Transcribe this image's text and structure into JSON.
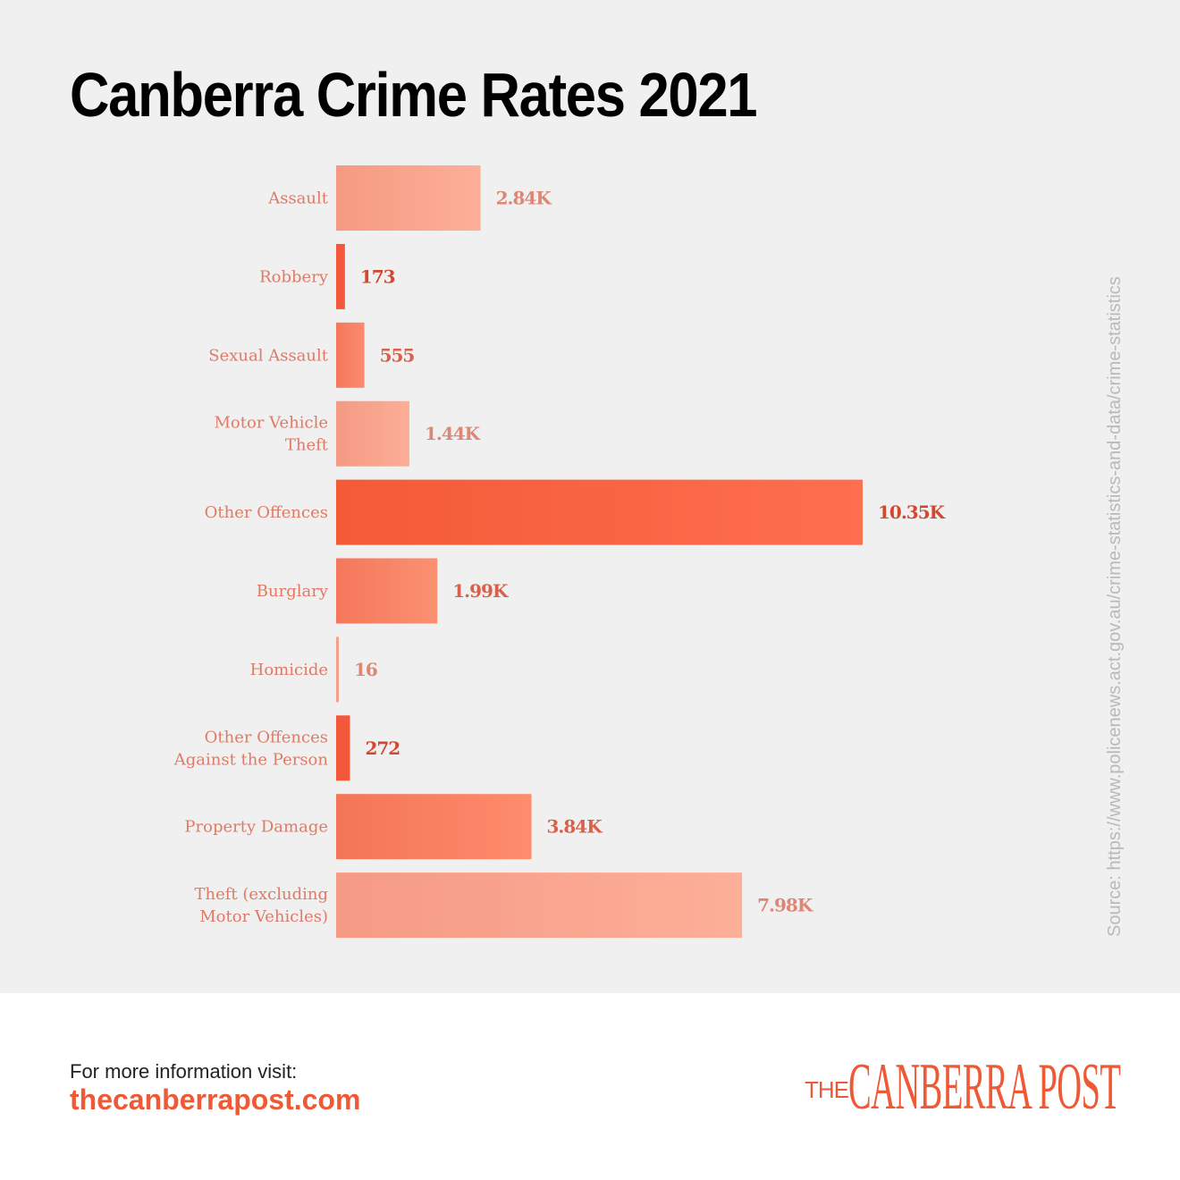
{
  "title": "Canberra Crime Rates 2021",
  "source": "Source: https://www.policenews.act.gov.au/crime-statistics-and-data/crime-statistics",
  "footer": {
    "prompt": "For more information visit:",
    "link": "thecanberrapost.com",
    "logo_small": "THE",
    "logo_main": "CANBERRA POST"
  },
  "colors": {
    "accent": "#ef5a36",
    "background": "#f0f0f0"
  },
  "chart_data": {
    "type": "bar",
    "orientation": "horizontal",
    "title": "Canberra Crime Rates 2021",
    "xlim": [
      0,
      10350
    ],
    "grid": false,
    "categories": [
      [
        "Assault"
      ],
      [
        "Robbery"
      ],
      [
        "Sexual Assault"
      ],
      [
        "Motor Vehicle",
        "Theft"
      ],
      [
        "Other Offences"
      ],
      [
        "Burglary"
      ],
      [
        "Homicide"
      ],
      [
        "Other Offences",
        "Against the Person"
      ],
      [
        "Property Damage"
      ],
      [
        "Theft (excluding",
        "Motor Vehicles)"
      ]
    ],
    "values": [
      2840,
      173,
      555,
      1440,
      10350,
      1990,
      16,
      272,
      3840,
      7980
    ],
    "labels": [
      "2.84K",
      "173",
      "555",
      "1.44K",
      "10.35K",
      "1.99K",
      "16",
      "272",
      "3.84K",
      "7.98K"
    ],
    "bar_colors": [
      [
        "#f59a82",
        "#fdaf98"
      ],
      [
        "#f4583a",
        "#f4583a"
      ],
      [
        "#f5785c",
        "#fb8a6d"
      ],
      [
        "#f59a84",
        "#fcae97"
      ],
      [
        "#f45a36",
        "#fe6f4f"
      ],
      [
        "#f5775b",
        "#fb9172"
      ],
      [
        "#f4a08e",
        "#f4a08e"
      ],
      [
        "#f4583a",
        "#f4583a"
      ],
      [
        "#f47558",
        "#fe8c6c"
      ],
      [
        "#f59a85",
        "#fdaf98"
      ]
    ],
    "label_colors": [
      "#de8674",
      "#d4472f",
      "#d9604a",
      "#de8674",
      "#d4472f",
      "#d9604a",
      "#de8674",
      "#d4472f",
      "#d9604a",
      "#de8674"
    ]
  }
}
